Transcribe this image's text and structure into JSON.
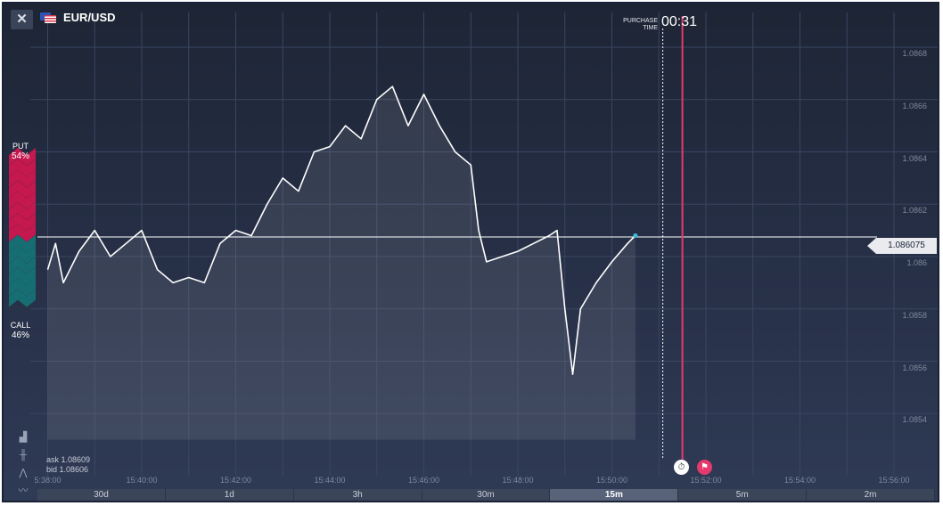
{
  "header": {
    "close_label": "✕",
    "symbol": "EUR/USD",
    "purchase_time_label_line1": "PURCHASE",
    "purchase_time_label_line2": "TIME",
    "purchase_time_value": "00:31"
  },
  "sentiment": {
    "put_label": "PUT",
    "put_percent": "54%",
    "call_label": "CALL",
    "call_percent": "46%",
    "put_color": "#c4184f",
    "call_color": "#176e72"
  },
  "current_price": "1.086075",
  "quote": {
    "ask": "ask 1.08609",
    "bid": "bid 1.08606"
  },
  "toolbar": {
    "icons": [
      "area-chart-icon",
      "candles-icon",
      "bars-icon",
      "line-chart-icon"
    ]
  },
  "x_axis": [
    "5:38:00",
    "15:40:00",
    "15:42:00",
    "15:44:00",
    "15:46:00",
    "15:48:00",
    "15:50:00",
    "15:52:00",
    "15:54:00",
    "15:56:00"
  ],
  "y_axis": [
    "1.0868",
    "1.0866",
    "1.0864",
    "1.0862",
    "1.086",
    "1.0858",
    "1.0856",
    "1.0854"
  ],
  "timeframes": [
    {
      "label": "30d",
      "active": false
    },
    {
      "label": "1d",
      "active": false
    },
    {
      "label": "3h",
      "active": false
    },
    {
      "label": "30m",
      "active": false
    },
    {
      "label": "15m",
      "active": true
    },
    {
      "label": "5m",
      "active": false
    },
    {
      "label": "2m",
      "active": false
    }
  ],
  "colors": {
    "price_line": "#ffffff",
    "expiry_line": "#e43a6d",
    "purchase_line": "#ffffff",
    "accent_dot": "#3cc0e0"
  },
  "chart_data": {
    "type": "line",
    "x_unit": "time",
    "ylim": [
      1.0853,
      1.0869
    ],
    "points": [
      [
        "15:38:00",
        1.08595
      ],
      [
        "15:38:10",
        1.08605
      ],
      [
        "15:38:20",
        1.0859
      ],
      [
        "15:38:40",
        1.08602
      ],
      [
        "15:39:00",
        1.0861
      ],
      [
        "15:39:20",
        1.086
      ],
      [
        "15:39:40",
        1.08605
      ],
      [
        "15:40:00",
        1.0861
      ],
      [
        "15:40:20",
        1.08595
      ],
      [
        "15:40:40",
        1.0859
      ],
      [
        "15:41:00",
        1.08592
      ],
      [
        "15:41:20",
        1.0859
      ],
      [
        "15:41:40",
        1.08605
      ],
      [
        "15:42:00",
        1.0861
      ],
      [
        "15:42:20",
        1.08608
      ],
      [
        "15:42:40",
        1.0862
      ],
      [
        "15:43:00",
        1.0863
      ],
      [
        "15:43:20",
        1.08625
      ],
      [
        "15:43:40",
        1.0864
      ],
      [
        "15:44:00",
        1.08642
      ],
      [
        "15:44:20",
        1.0865
      ],
      [
        "15:44:40",
        1.08645
      ],
      [
        "15:45:00",
        1.0866
      ],
      [
        "15:45:20",
        1.08665
      ],
      [
        "15:45:40",
        1.0865
      ],
      [
        "15:46:00",
        1.08662
      ],
      [
        "15:46:20",
        1.0865
      ],
      [
        "15:46:40",
        1.0864
      ],
      [
        "15:47:00",
        1.08635
      ],
      [
        "15:47:10",
        1.0861
      ],
      [
        "15:47:20",
        1.08598
      ],
      [
        "15:47:40",
        1.086
      ],
      [
        "15:48:00",
        1.08602
      ],
      [
        "15:48:20",
        1.08605
      ],
      [
        "15:48:40",
        1.08608
      ],
      [
        "15:48:50",
        1.0861
      ],
      [
        "15:49:00",
        1.0858
      ],
      [
        "15:49:10",
        1.08555
      ],
      [
        "15:49:20",
        1.0858
      ],
      [
        "15:49:40",
        1.0859
      ],
      [
        "15:50:00",
        1.08598
      ],
      [
        "15:50:20",
        1.08605
      ],
      [
        "15:50:30",
        1.08608
      ]
    ],
    "horizontal_line": 1.086075,
    "purchase_time": "15:51:05",
    "expiry_time": "15:51:30"
  }
}
